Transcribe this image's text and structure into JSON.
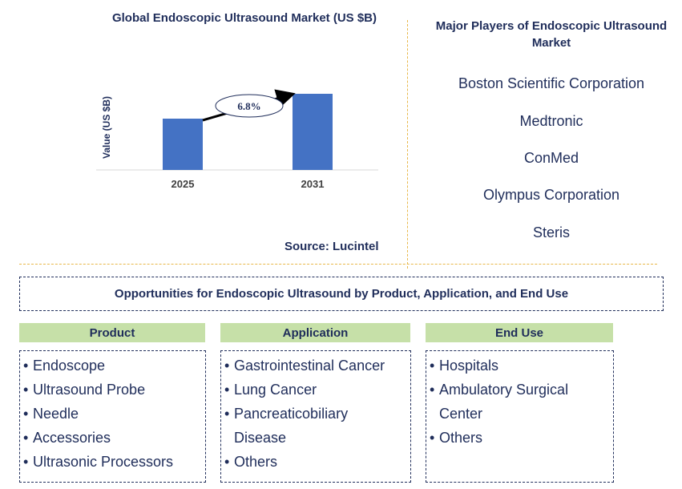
{
  "chart_data": {
    "type": "bar",
    "title": "Global Endoscopic Ultrasound Market (US $B)",
    "ylabel": "Value (US $B)",
    "xlabel": "",
    "categories": [
      "2025",
      "2031"
    ],
    "values": [
      0.64,
      0.95
    ],
    "annotation": "6.8%",
    "bar_color": "#4472c4",
    "grid": false,
    "source": "Source: Lucintel"
  },
  "players": {
    "title": "Major Players of Endoscopic Ultrasound Market",
    "items": [
      "Boston Scientific Corporation",
      "Medtronic",
      "ConMed",
      "Olympus Corporation",
      "Steris"
    ]
  },
  "opportunities": {
    "title": "Opportunities for Endoscopic Ultrasound by Product, Application, and End Use"
  },
  "categories": {
    "product": {
      "label": "Product",
      "items": [
        "Endoscope",
        "Ultrasound Probe",
        "Needle",
        "Accessories",
        "Ultrasonic Processors"
      ]
    },
    "application": {
      "label": "Application",
      "items": [
        "Gastrointestinal Cancer",
        "Lung Cancer",
        "Pancreaticobiliary Disease",
        "Others"
      ]
    },
    "end_use": {
      "label": "End Use",
      "items": [
        "Hospitals",
        "Ambulatory Surgical Center",
        "Others"
      ]
    }
  },
  "colors": {
    "text": "#1f2d5a",
    "header_bg": "#c6e0a8",
    "separator": "#e8b84a"
  }
}
